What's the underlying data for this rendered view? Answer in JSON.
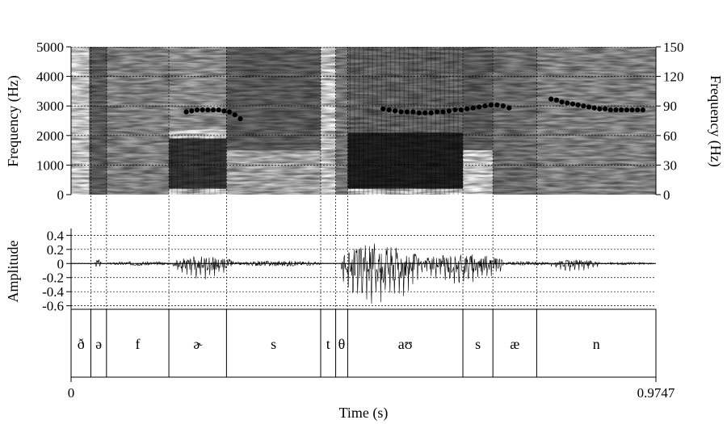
{
  "chart_data": [
    {
      "type": "heatmap",
      "panel": "spectrogram",
      "ylabel_left": "Frequency (Hz)",
      "ylabel_right": "Frequency (Hz)",
      "left_ticks": [
        "0",
        "1000",
        "2000",
        "3000",
        "4000",
        "5000"
      ],
      "left_ylim": [
        0,
        5000
      ],
      "right_ticks": [
        "0",
        "30",
        "60",
        "90",
        "120",
        "150"
      ],
      "right_ylim": [
        0,
        150
      ],
      "xlim": [
        0,
        0.9747
      ],
      "grid": true,
      "pitch_series": [
        {
          "name": "",
          "x": [
            0.192,
            0.201,
            0.21,
            0.219,
            0.228,
            0.237,
            0.246,
            0.255,
            0.264,
            0.273,
            0.282
          ],
          "y": [
            84,
            85,
            86,
            86,
            86,
            86,
            86,
            85,
            84,
            81,
            77
          ]
        },
        {
          "name": "",
          "x": [
            0.52,
            0.53,
            0.54,
            0.55,
            0.56,
            0.57,
            0.58,
            0.59,
            0.6,
            0.61,
            0.62,
            0.63,
            0.64,
            0.65,
            0.66,
            0.67,
            0.68,
            0.69,
            0.7,
            0.71,
            0.72,
            0.73
          ],
          "y": [
            87,
            86,
            85,
            84,
            84,
            84,
            83,
            83,
            83,
            84,
            84,
            85,
            86,
            86,
            87,
            88,
            89,
            90,
            91,
            91,
            90,
            88
          ]
        },
        {
          "name": "",
          "x": [
            0.8,
            0.809,
            0.818,
            0.827,
            0.836,
            0.845,
            0.854,
            0.863,
            0.872,
            0.881,
            0.89,
            0.899,
            0.908,
            0.917,
            0.926,
            0.935,
            0.944,
            0.953
          ],
          "y": [
            97,
            96,
            94,
            93,
            92,
            91,
            90,
            89,
            88,
            87,
            87,
            86,
            86,
            86,
            86,
            86,
            86,
            86
          ]
        }
      ]
    },
    {
      "type": "line",
      "panel": "waveform",
      "ylabel": "Amplitude",
      "ticks": [
        "0.4",
        "0.2",
        "0",
        "-0.2",
        "-0.4",
        "-0.6"
      ],
      "ylim": [
        -0.65,
        0.45
      ],
      "grid": true,
      "segments": [
        {
          "x0": 0.04,
          "x1": 0.05,
          "amp": 0.06
        },
        {
          "x0": 0.06,
          "x1": 0.17,
          "amp": 0.03
        },
        {
          "x0": 0.17,
          "x1": 0.27,
          "amp": 0.12
        },
        {
          "x0": 0.27,
          "x1": 0.42,
          "amp": 0.04
        },
        {
          "x0": 0.45,
          "x1": 0.58,
          "amp": 0.32
        },
        {
          "x0": 0.58,
          "x1": 0.72,
          "amp": 0.16
        },
        {
          "x0": 0.72,
          "x1": 0.8,
          "amp": 0.03
        },
        {
          "x0": 0.8,
          "x1": 0.88,
          "amp": 0.06
        },
        {
          "x0": 0.88,
          "x1": 0.97,
          "amp": 0.02
        }
      ]
    }
  ],
  "tier": {
    "boundaries": [
      0.0,
      0.033,
      0.059,
      0.163,
      0.259,
      0.416,
      0.441,
      0.461,
      0.653,
      0.703,
      0.776,
      0.9747
    ],
    "labels": [
      "ð",
      "ə",
      "f",
      "ɚ",
      "s",
      "t",
      "θ",
      "aʊ",
      "s",
      "æ",
      "n"
    ]
  },
  "xaxis": {
    "label": "Time (s)",
    "min_label": "0",
    "max_label": "0.9747"
  }
}
